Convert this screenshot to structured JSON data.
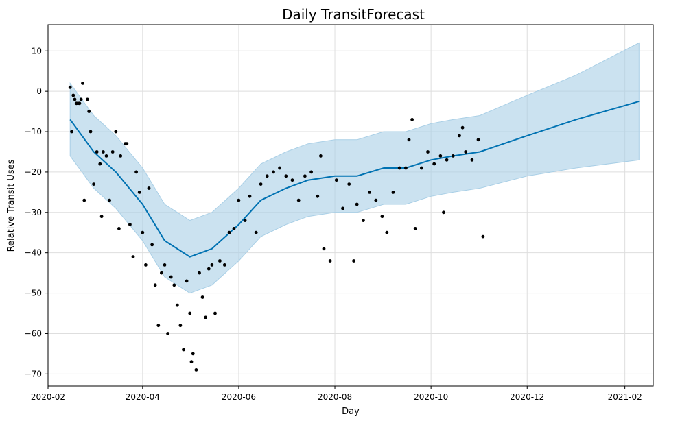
{
  "chart_data": {
    "type": "line",
    "title": "Daily TransitForecast",
    "xlabel": "Day",
    "ylabel": "Relative Transit Uses",
    "x_ticks": [
      "2020-02",
      "2020-04",
      "2020-06",
      "2020-08",
      "2020-10",
      "2020-12",
      "2021-02"
    ],
    "y_ticks": [
      10,
      0,
      -10,
      -20,
      -30,
      -40,
      -50,
      -60,
      -70
    ],
    "xlim": [
      "2020-02-01",
      "2021-02-19"
    ],
    "ylim": [
      -73,
      16.5
    ],
    "grid": true,
    "colors": {
      "forecast": "#0072B2",
      "interval": "#a9cfe6",
      "observed": "#000000"
    },
    "series": [
      {
        "kind": "line",
        "x": [
          "2020-02-15",
          "2020-03-01",
          "2020-03-15",
          "2020-04-01",
          "2020-04-15",
          "2020-05-01",
          "2020-05-15",
          "2020-06-01",
          "2020-06-15",
          "2020-07-01",
          "2020-07-15",
          "2020-08-01",
          "2020-08-15",
          "2020-09-01",
          "2020-09-15",
          "2020-10-01",
          "2020-10-15",
          "2020-11-01",
          "2020-12-01",
          "2021-01-01",
          "2021-02-10"
        ],
        "y": [
          -7,
          -15,
          -20,
          -28,
          -37,
          -41,
          -39,
          -33,
          -27,
          -24,
          -22,
          -21,
          -21,
          -19,
          -19,
          -17,
          -16,
          -15,
          -11,
          -7,
          -2.5
        ]
      },
      {
        "kind": "band",
        "x": [
          "2020-02-15",
          "2020-03-01",
          "2020-03-15",
          "2020-04-01",
          "2020-04-15",
          "2020-05-01",
          "2020-05-15",
          "2020-06-01",
          "2020-06-15",
          "2020-07-01",
          "2020-07-15",
          "2020-08-01",
          "2020-08-15",
          "2020-09-01",
          "2020-09-15",
          "2020-10-01",
          "2020-10-15",
          "2020-11-01",
          "2020-12-01",
          "2021-01-01",
          "2021-02-10"
        ],
        "upper": [
          2,
          -6,
          -11,
          -19,
          -28,
          -32,
          -30,
          -24,
          -18,
          -15,
          -13,
          -12,
          -12,
          -10,
          -10,
          -8,
          -7,
          -6,
          -1,
          4,
          12
        ],
        "lower": [
          -16,
          -24,
          -29,
          -37,
          -46,
          -50,
          -48,
          -42,
          -36,
          -33,
          -31,
          -30,
          -30,
          -28,
          -28,
          -26,
          -25,
          -24,
          -21,
          -19,
          -17
        ]
      },
      {
        "kind": "scatter",
        "x": [
          "2020-02-15",
          "2020-02-16",
          "2020-02-17",
          "2020-02-18",
          "2020-02-19",
          "2020-02-20",
          "2020-02-21",
          "2020-02-22",
          "2020-02-23",
          "2020-02-24",
          "2020-02-26",
          "2020-02-27",
          "2020-02-28",
          "2020-03-01",
          "2020-03-03",
          "2020-03-05",
          "2020-03-06",
          "2020-03-07",
          "2020-03-09",
          "2020-03-11",
          "2020-03-13",
          "2020-03-15",
          "2020-03-17",
          "2020-03-18",
          "2020-03-21",
          "2020-03-22",
          "2020-03-24",
          "2020-03-26",
          "2020-03-28",
          "2020-03-30",
          "2020-04-01",
          "2020-04-03",
          "2020-04-05",
          "2020-04-07",
          "2020-04-09",
          "2020-04-11",
          "2020-04-13",
          "2020-04-15",
          "2020-04-17",
          "2020-04-19",
          "2020-04-21",
          "2020-04-23",
          "2020-04-25",
          "2020-04-27",
          "2020-04-29",
          "2020-05-01",
          "2020-05-02",
          "2020-05-03",
          "2020-05-05",
          "2020-05-07",
          "2020-05-09",
          "2020-05-11",
          "2020-05-13",
          "2020-05-15",
          "2020-05-17",
          "2020-05-20",
          "2020-05-23",
          "2020-05-26",
          "2020-05-29",
          "2020-06-01",
          "2020-06-05",
          "2020-06-08",
          "2020-06-12",
          "2020-06-15",
          "2020-06-19",
          "2020-06-23",
          "2020-06-27",
          "2020-07-01",
          "2020-07-05",
          "2020-07-09",
          "2020-07-13",
          "2020-07-17",
          "2020-07-21",
          "2020-07-23",
          "2020-07-25",
          "2020-07-29",
          "2020-08-02",
          "2020-08-06",
          "2020-08-10",
          "2020-08-13",
          "2020-08-15",
          "2020-08-19",
          "2020-08-23",
          "2020-08-27",
          "2020-08-31",
          "2020-09-03",
          "2020-09-07",
          "2020-09-11",
          "2020-09-15",
          "2020-09-17",
          "2020-09-19",
          "2020-09-21",
          "2020-09-25",
          "2020-09-29",
          "2020-10-03",
          "2020-10-07",
          "2020-10-09",
          "2020-10-11",
          "2020-10-15",
          "2020-10-19",
          "2020-10-21",
          "2020-10-23",
          "2020-10-27",
          "2020-10-31",
          "2020-11-03"
        ],
        "y": [
          1,
          -10,
          -1,
          -2,
          -3,
          -3,
          -3,
          -2,
          2,
          -27,
          -2,
          -5,
          -10,
          -23,
          -15,
          -18,
          -31,
          -15,
          -16,
          -27,
          -15,
          -10,
          -34,
          -16,
          -13,
          -13,
          -33,
          -41,
          -20,
          -25,
          -35,
          -43,
          -24,
          -38,
          -48,
          -58,
          -45,
          -43,
          -60,
          -46,
          -48,
          -53,
          -58,
          -64,
          -47,
          -55,
          -67,
          -65,
          -69,
          -45,
          -51,
          -56,
          -44,
          -43,
          -55,
          -42,
          -43,
          -35,
          -34,
          -27,
          -32,
          -26,
          -35,
          -23,
          -21,
          -20,
          -19,
          -21,
          -22,
          -27,
          -21,
          -20,
          -26,
          -16,
          -39,
          -42,
          -22,
          -29,
          -23,
          -42,
          -28,
          -32,
          -25,
          -27,
          -31,
          -35,
          -25,
          -19,
          -19,
          -12,
          -7,
          -34,
          -19,
          -15,
          -18,
          -16,
          -30,
          -17,
          -16,
          -11,
          -9,
          -15,
          -17,
          -12,
          -36
        ]
      }
    ]
  }
}
